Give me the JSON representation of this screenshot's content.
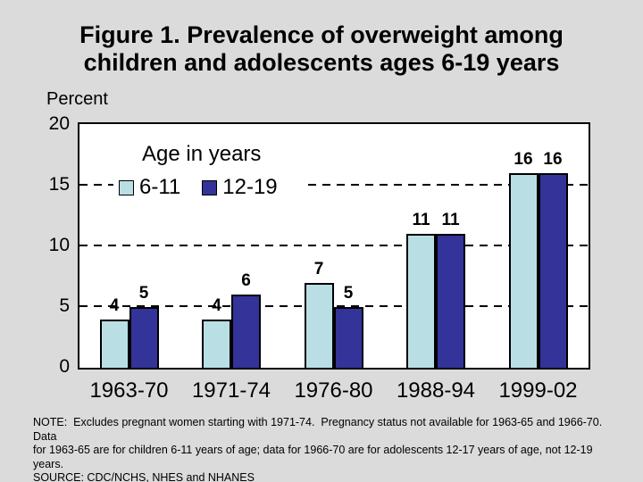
{
  "title": {
    "line1": "Figure 1. Prevalence of overweight among",
    "line2": "children and adolescents ages 6-19 years"
  },
  "axes": {
    "y_label": "Percent"
  },
  "legend": {
    "title": "Age in years",
    "items": [
      {
        "label": "6-11",
        "color": "#B9DFE4"
      },
      {
        "label": "12-19",
        "color": "#333399"
      }
    ]
  },
  "chart_data": {
    "type": "bar",
    "title": "Figure 1. Prevalence of overweight among children and adolescents ages 6-19 years",
    "ylabel": "Percent",
    "categories": [
      "1963-70",
      "1971-74",
      "1976-80",
      "1988-94",
      "1999-02"
    ],
    "series": [
      {
        "name": "6-11",
        "color": "#B9DFE4",
        "values": [
          4,
          4,
          7,
          11,
          16
        ]
      },
      {
        "name": "12-19",
        "color": "#333399",
        "values": [
          5,
          6,
          5,
          11,
          16
        ]
      }
    ],
    "ylim": [
      0,
      20
    ],
    "yticks": [
      0,
      5,
      10,
      15,
      20
    ],
    "gridlines": [
      5,
      10,
      15
    ],
    "grid_style": "dashed",
    "legend_title": "Age in years",
    "legend_position": "top-left-inside",
    "bar_labels_shown": true
  },
  "colors": {
    "background": "#DBDBDB",
    "plot_background": "#FFFFFF",
    "axis": "#000000",
    "text": "#000000"
  },
  "notes": {
    "line1": "NOTE:  Excludes pregnant women starting with 1971-74.  Pregnancy status not available for 1963-65 and 1966-70.  Data",
    "line2": "for 1963-65 are for children 6-11 years of age; data for 1966-70 are for adolescents 12-17 years of age, not 12-19 years.",
    "line3": "SOURCE: CDC/NCHS, NHES and NHANES"
  }
}
